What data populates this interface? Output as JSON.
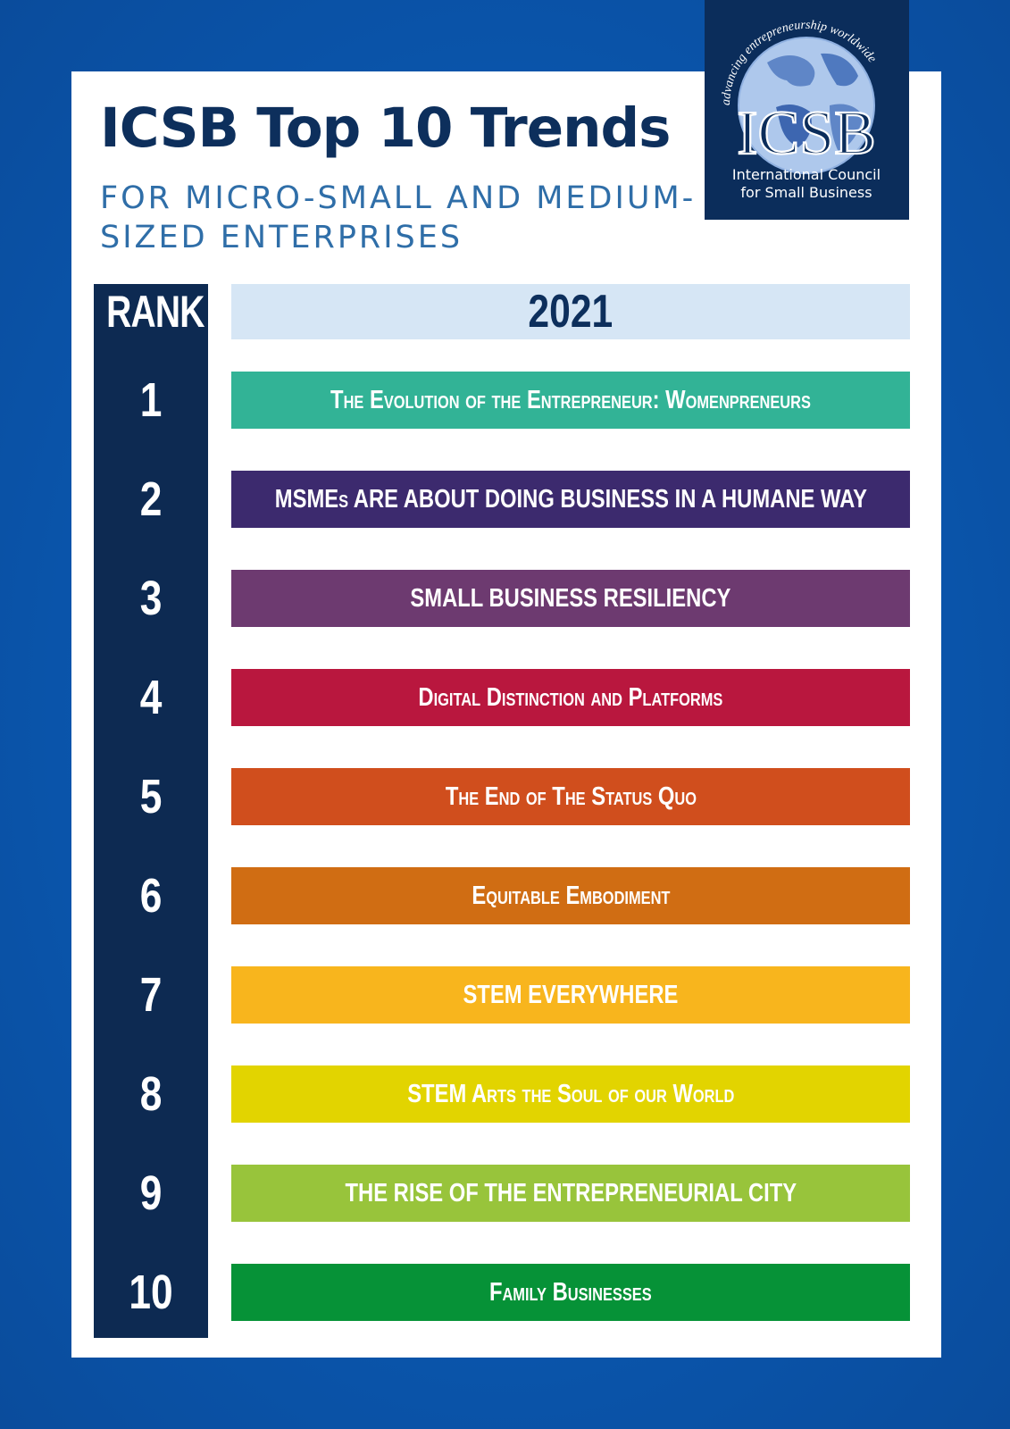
{
  "header": {
    "title": "ICSB Top 10 Trends",
    "subtitle": "FOR MICRO-SMALL AND MEDIUM-SIZED ENTERPRISES"
  },
  "logo": {
    "arc_text": "advancing entrepreneurship worldwide",
    "acronym": "ICSB",
    "name_line1": "International Council",
    "name_line2": "for Small Business"
  },
  "table": {
    "rank_header": "RANK",
    "year_header": "2021",
    "rows": [
      {
        "rank": "1",
        "trend": "The Evolution of the Entrepreneur: Womenpreneurs",
        "color": "#32b396"
      },
      {
        "rank": "2",
        "trend": "MSMEs ARE ABOUT DOING BUSINESS IN A HUMANE WAY",
        "color": "#3c2a6e"
      },
      {
        "rank": "3",
        "trend": "SMALL BUSINESS RESILIENCY",
        "color": "#6d3a70"
      },
      {
        "rank": "4",
        "trend": "Digital Distinction and Platforms",
        "color": "#b9173e"
      },
      {
        "rank": "5",
        "trend": "The End of The Status Quo",
        "color": "#d04e1d"
      },
      {
        "rank": "6",
        "trend": "Equitable Embodiment",
        "color": "#d06d13"
      },
      {
        "rank": "7",
        "trend": "STEM EVERYWHERE",
        "color": "#f8b51d"
      },
      {
        "rank": "8",
        "trend": "STEM Arts the Soul of our World",
        "color": "#e2d400"
      },
      {
        "rank": "9",
        "trend": "THE RISE OF THE ENTREPRENEURIAL CITY",
        "color": "#98c43b"
      },
      {
        "rank": "10",
        "trend": "Family Businesses",
        "color": "#069237"
      }
    ]
  }
}
